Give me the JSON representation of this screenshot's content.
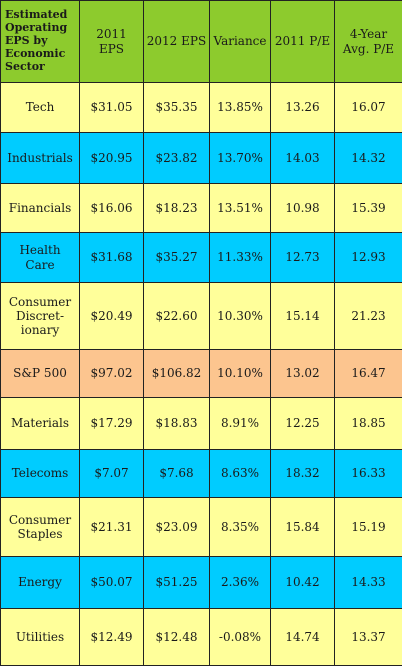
{
  "table": {
    "headers": {
      "sector": "Estimated Operating EPS by Economic Sector",
      "eps_2011": "2011 EPS",
      "eps_2012": "2012 EPS",
      "variance": "Variance",
      "pe_2011": "2011 P/E",
      "pe_4yr": "4-Year Avg. P/E"
    },
    "row_colors": {
      "yellow": "#ffff9a",
      "blue": "#00ccff",
      "orange": "#fcc58f",
      "header_green": "#8dcb2d"
    },
    "rows": [
      {
        "sector": "Tech",
        "eps_2011": "$31.05",
        "eps_2012": "$35.35",
        "variance": "13.85%",
        "pe_2011": "13.26",
        "pe_4yr": "16.07"
      },
      {
        "sector": "Industrials",
        "eps_2011": "$20.95",
        "eps_2012": "$23.82",
        "variance": "13.70%",
        "pe_2011": "14.03",
        "pe_4yr": "14.32"
      },
      {
        "sector": "Financials",
        "eps_2011": "$16.06",
        "eps_2012": "$18.23",
        "variance": "13.51%",
        "pe_2011": "10.98",
        "pe_4yr": "15.39"
      },
      {
        "sector": "Health Care",
        "eps_2011": "$31.68",
        "eps_2012": "$35.27",
        "variance": "11.33%",
        "pe_2011": "12.73",
        "pe_4yr": "12.93"
      },
      {
        "sector": "Consumer Discret- ionary",
        "eps_2011": "$20.49",
        "eps_2012": "$22.60",
        "variance": "10.30%",
        "pe_2011": "15.14",
        "pe_4yr": "21.23"
      },
      {
        "sector": "S&P 500",
        "eps_2011": "$97.02",
        "eps_2012": "$106.82",
        "variance": "10.10%",
        "pe_2011": "13.02",
        "pe_4yr": "16.47"
      },
      {
        "sector": "Materials",
        "eps_2011": "$17.29",
        "eps_2012": "$18.83",
        "variance": "8.91%",
        "pe_2011": "12.25",
        "pe_4yr": "18.85"
      },
      {
        "sector": "Telecoms",
        "eps_2011": "$7.07",
        "eps_2012": "$7.68",
        "variance": "8.63%",
        "pe_2011": "18.32",
        "pe_4yr": "16.33"
      },
      {
        "sector": "Consumer Staples",
        "eps_2011": "$21.31",
        "eps_2012": "$23.09",
        "variance": "8.35%",
        "pe_2011": "15.84",
        "pe_4yr": "15.19"
      },
      {
        "sector": "Energy",
        "eps_2011": "$50.07",
        "eps_2012": "$51.25",
        "variance": "2.36%",
        "pe_2011": "10.42",
        "pe_4yr": "14.33"
      },
      {
        "sector": "Utilities",
        "eps_2011": "$12.49",
        "eps_2012": "$12.48",
        "variance": "-0.08%",
        "pe_2011": "14.74",
        "pe_4yr": "13.37"
      }
    ]
  }
}
